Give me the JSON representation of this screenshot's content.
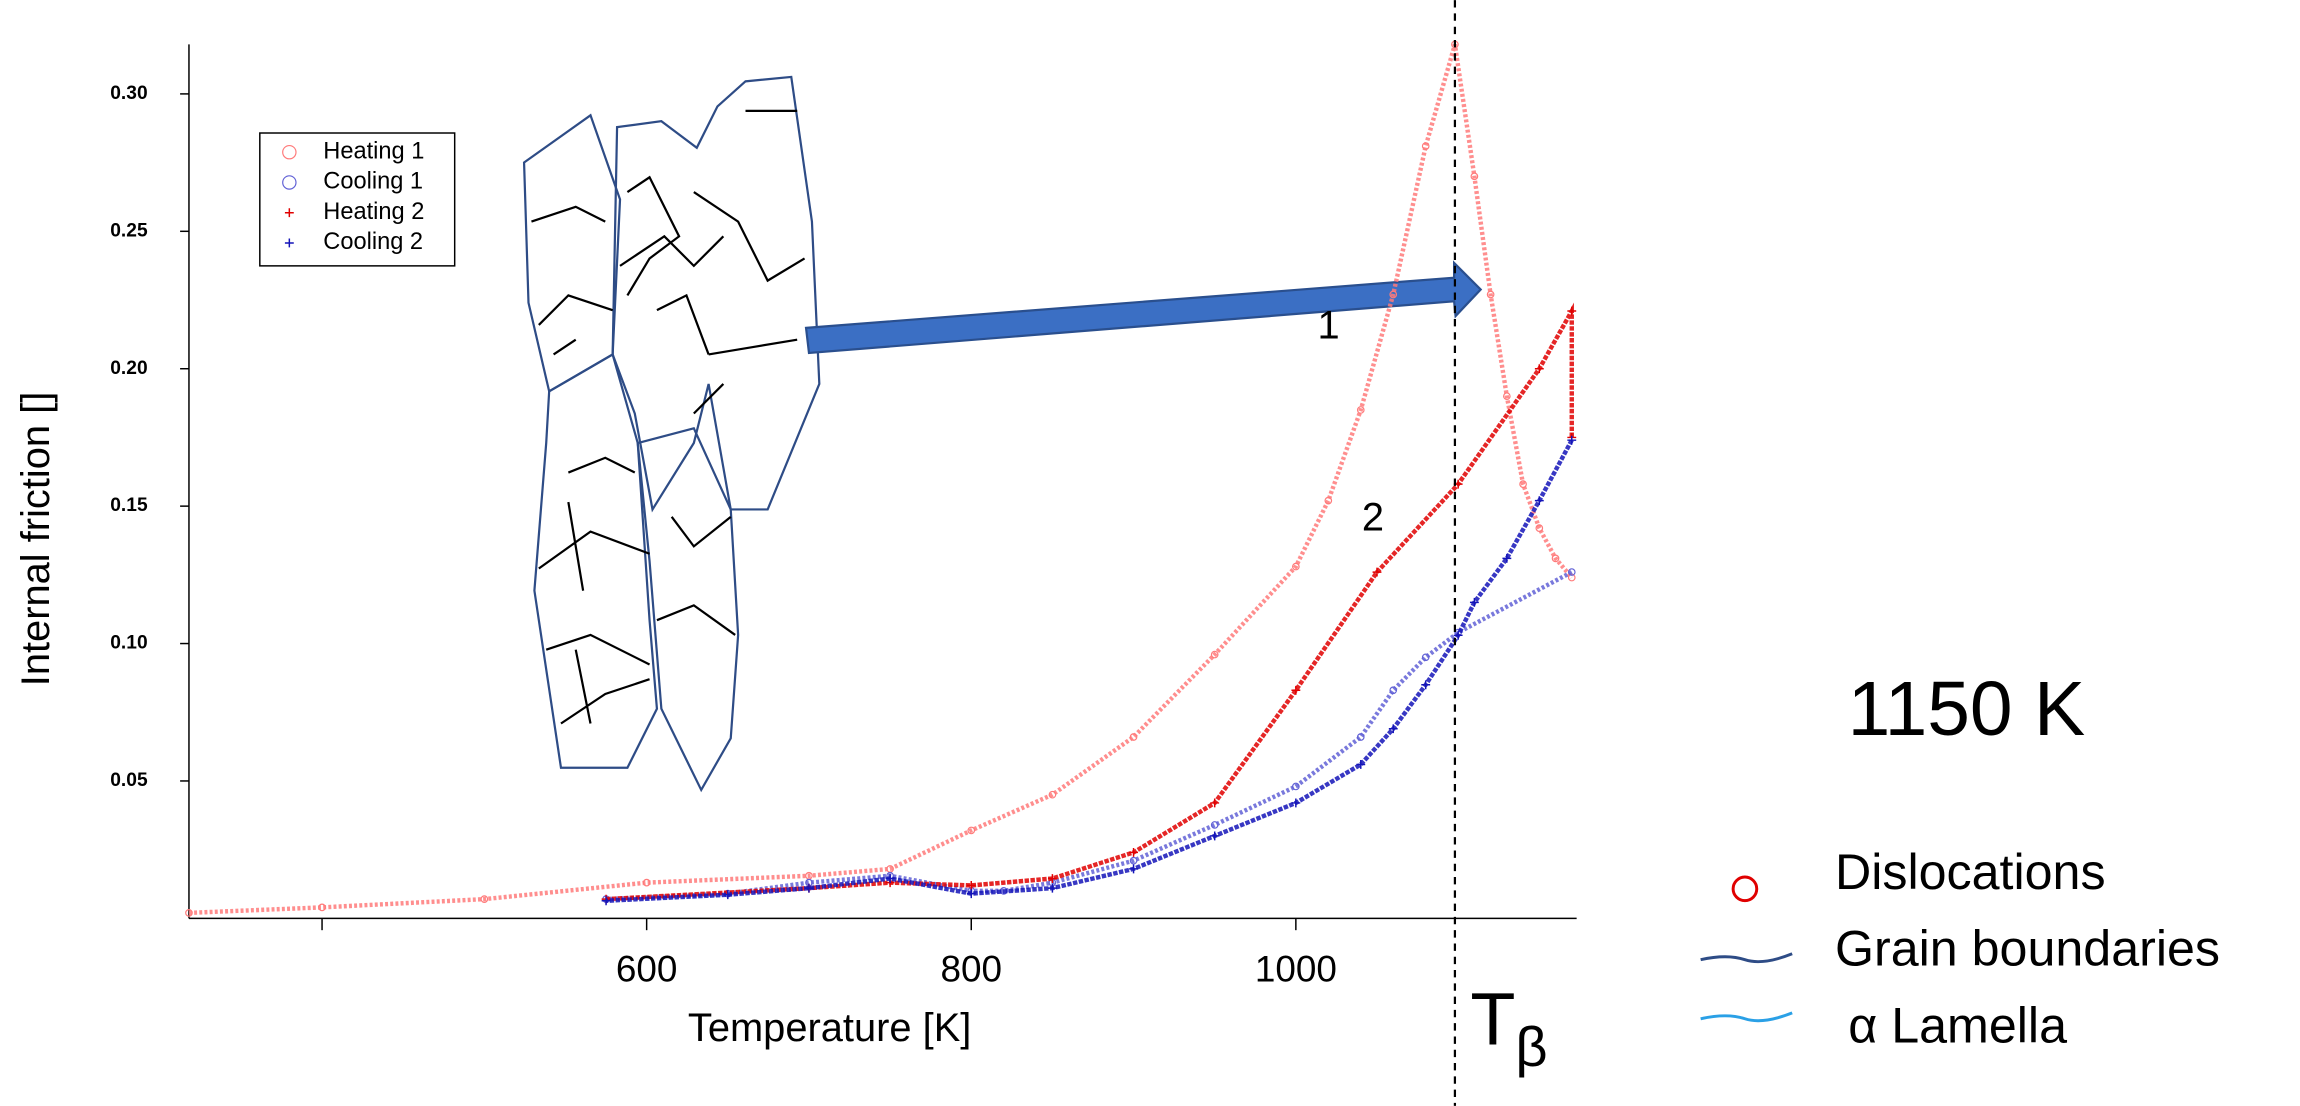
{
  "chart_data": {
    "type": "line",
    "x_label": "Temperature [K]",
    "y_label": "Internal friction []",
    "xlim": [
      318,
      1173
    ],
    "ylim": [
      0,
      0.318
    ],
    "xticks": [
      600,
      800,
      1000
    ],
    "xticks_unlabeled": [
      400
    ],
    "yticks": [
      {
        "value": 0.05,
        "label": "0.05"
      },
      {
        "value": 0.1,
        "label": "0.10"
      },
      {
        "value": 0.15,
        "label": "0.15"
      },
      {
        "value": 0.2,
        "label": "0.20"
      },
      {
        "value": 0.25,
        "label": "0.25"
      },
      {
        "value": 0.3,
        "label": "0.30"
      }
    ],
    "legend_position": "upper left",
    "series": [
      {
        "name": "Heating 1",
        "color": "#ff7a7a",
        "marker": "circle",
        "x": [
          318,
          400,
          500,
          600,
          700,
          750,
          800,
          850,
          900,
          950,
          1000,
          1020,
          1040,
          1060,
          1080,
          1098,
          1110,
          1120,
          1130,
          1140,
          1150,
          1160,
          1170
        ],
        "values": [
          0.002,
          0.004,
          0.007,
          0.013,
          0.0155,
          0.018,
          0.032,
          0.045,
          0.066,
          0.096,
          0.128,
          0.152,
          0.185,
          0.227,
          0.281,
          0.318,
          0.27,
          0.227,
          0.19,
          0.158,
          0.142,
          0.131,
          0.124
        ]
      },
      {
        "name": "Cooling 1",
        "color": "#6262d6",
        "marker": "circle",
        "x": [
          1170,
          1100,
          1080,
          1060,
          1040,
          1000,
          950,
          900,
          850,
          820,
          800,
          750,
          700,
          650,
          575
        ],
        "values": [
          0.126,
          0.104,
          0.095,
          0.083,
          0.066,
          0.048,
          0.034,
          0.021,
          0.013,
          0.01,
          0.01,
          0.0155,
          0.013,
          0.009,
          0.007
        ]
      },
      {
        "name": "Heating 2",
        "color": "#e00000",
        "marker": "plus",
        "x": [
          575,
          700,
          750,
          800,
          850,
          900,
          950,
          1000,
          1050,
          1100,
          1150,
          1170,
          1170
        ],
        "values": [
          0.007,
          0.011,
          0.013,
          0.012,
          0.0145,
          0.024,
          0.042,
          0.083,
          0.126,
          0.158,
          0.2,
          0.221,
          0.175
        ]
      },
      {
        "name": "Cooling 2",
        "color": "#1414b8",
        "marker": "plus",
        "x": [
          1170,
          1150,
          1130,
          1110,
          1100,
          1080,
          1060,
          1040,
          1000,
          950,
          900,
          850,
          800,
          750,
          700,
          650,
          575
        ],
        "values": [
          0.174,
          0.152,
          0.131,
          0.115,
          0.103,
          0.085,
          0.069,
          0.056,
          0.042,
          0.03,
          0.018,
          0.011,
          0.009,
          0.0145,
          0.011,
          0.0086,
          0.0064
        ]
      }
    ],
    "transus_line": 1098,
    "transus_label": {
      "main": "T",
      "sub": "β"
    },
    "annotations": [
      "1",
      "2"
    ],
    "temperature_note": "1150 K",
    "feature_legend": [
      "Dislocations",
      "Grain boundaries",
      "α Lamella"
    ]
  }
}
